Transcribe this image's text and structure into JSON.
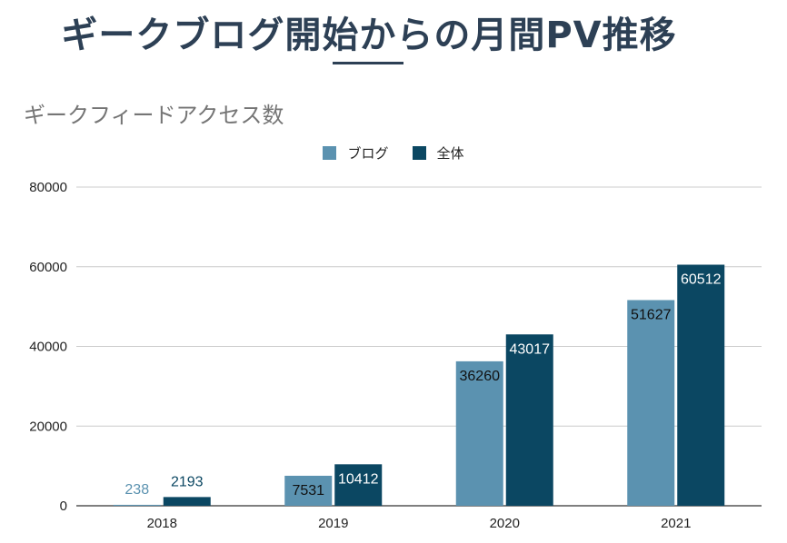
{
  "page": {
    "title": "ギークブログ開始からの月間PV推移"
  },
  "chart_data": {
    "type": "bar",
    "title": "ギークフィードアクセス数",
    "categories": [
      "2018",
      "2019",
      "2020",
      "2021"
    ],
    "series": [
      {
        "name": "ブログ",
        "color": "#5b92b0",
        "values": [
          238,
          7531,
          36260,
          51627
        ]
      },
      {
        "name": "全体",
        "color": "#0b4762",
        "values": [
          2193,
          10412,
          43017,
          60512
        ]
      }
    ],
    "ylim": [
      0,
      80000
    ],
    "yticks": [
      "0",
      "20000",
      "40000",
      "60000",
      "80000"
    ],
    "grid": true,
    "legend_position": "top-center",
    "data_labels": true
  }
}
